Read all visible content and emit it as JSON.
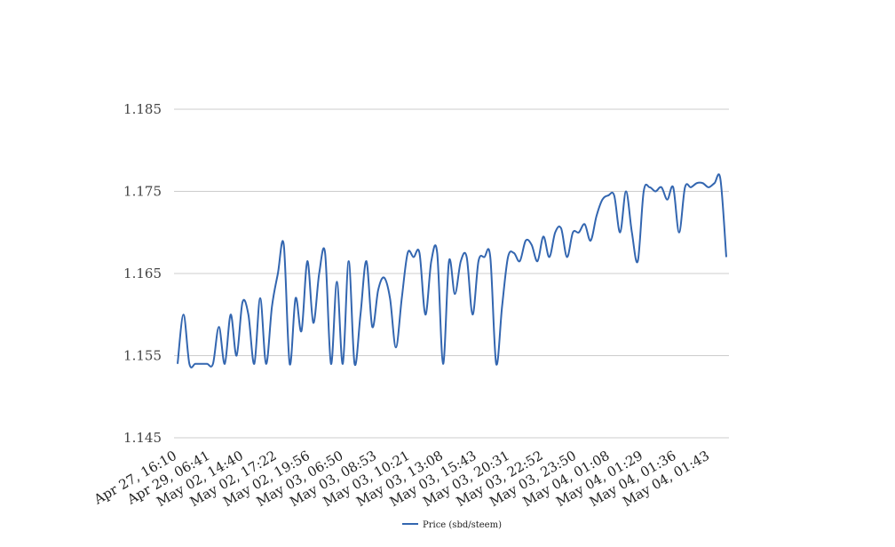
{
  "chart_data": {
    "type": "line",
    "title": "",
    "xlabel": "",
    "ylabel": "",
    "ylim": [
      1.145,
      1.185
    ],
    "yticks": [
      "1.185",
      "1.175",
      "1.165",
      "1.155",
      "1.145"
    ],
    "ytick_values": [
      1.185,
      1.175,
      1.165,
      1.155,
      1.145
    ],
    "xtick_labels": [
      "Apr 27, 16:10",
      "Apr 29, 06:41",
      "May 02, 14:40",
      "May 02, 17:22",
      "May 02, 19:56",
      "May 03, 06:50",
      "May 03, 08:53",
      "May 03, 10:21",
      "May 03, 13:08",
      "May 03, 15:43",
      "May 03, 20:31",
      "May 03, 22:52",
      "May 03, 23:50",
      "May 04, 01:08",
      "May 04, 01:29",
      "May 04, 01:36",
      "May 04, 01:43"
    ],
    "grid": true,
    "legend_position": "bottom",
    "series": [
      {
        "name": "Price (sbd/steem)",
        "color": "#3366b0",
        "values": [
          1.154,
          1.16,
          1.154,
          1.154,
          1.154,
          1.154,
          1.154,
          1.1585,
          1.154,
          1.16,
          1.155,
          1.1615,
          1.16,
          1.154,
          1.162,
          1.154,
          1.161,
          1.165,
          1.1685,
          1.154,
          1.162,
          1.158,
          1.1665,
          1.159,
          1.165,
          1.1675,
          1.154,
          1.164,
          1.154,
          1.1665,
          1.154,
          1.16,
          1.1665,
          1.1585,
          1.163,
          1.1645,
          1.162,
          1.156,
          1.162,
          1.1675,
          1.167,
          1.1675,
          1.16,
          1.1665,
          1.1675,
          1.154,
          1.1665,
          1.1625,
          1.1665,
          1.167,
          1.16,
          1.1665,
          1.167,
          1.167,
          1.154,
          1.161,
          1.167,
          1.1675,
          1.1665,
          1.169,
          1.1685,
          1.1665,
          1.1695,
          1.167,
          1.17,
          1.1705,
          1.167,
          1.17,
          1.17,
          1.171,
          1.169,
          1.172,
          1.174,
          1.1745,
          1.1745,
          1.17,
          1.175,
          1.17,
          1.1665,
          1.175,
          1.1755,
          1.175,
          1.1755,
          1.174,
          1.1755,
          1.17,
          1.1755,
          1.1755,
          1.176,
          1.176,
          1.1755,
          1.176,
          1.1765,
          1.167
        ]
      }
    ]
  }
}
